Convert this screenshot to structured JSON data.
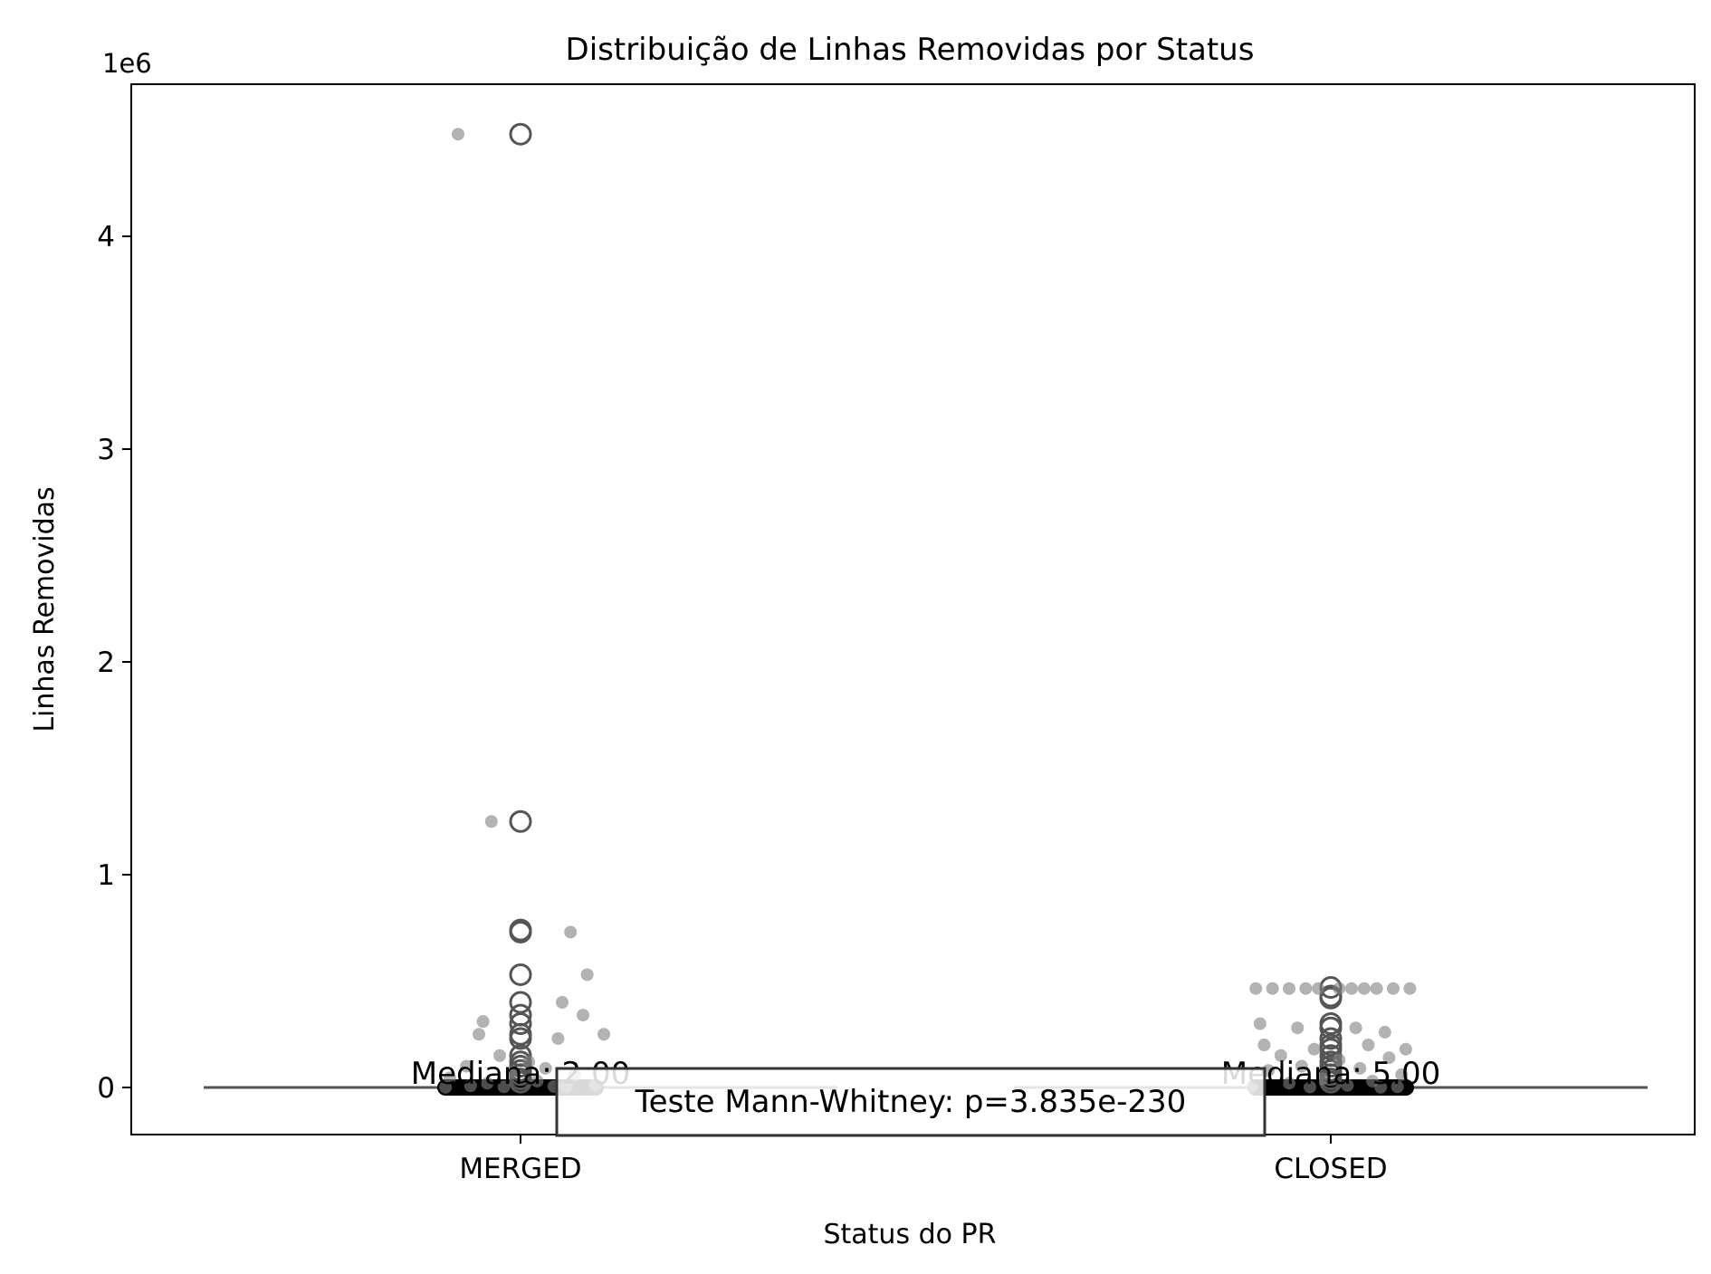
{
  "chart_data": {
    "type": "box",
    "title": "Distribuição de Linhas Removidas por Status",
    "xlabel": "Status do PR",
    "ylabel": "Linhas Removidas",
    "y_scale_label": "1e6",
    "ylim": [
      -220000,
      4850000
    ],
    "yticks": [
      0,
      1000000,
      2000000,
      3000000,
      4000000
    ],
    "ytick_labels": [
      "0",
      "1",
      "2",
      "3",
      "4"
    ],
    "grid": false,
    "categories": [
      "MERGED",
      "CLOSED"
    ],
    "medians": [
      2,
      5
    ],
    "median_labels": [
      "Mediana: 2.00",
      "Mediana: 5.00"
    ],
    "test_annotation": "Teste Mann-Whitney: p=3.835e-230",
    "colors": {
      "box_line": "#555555",
      "outlier_edge": "#555555",
      "jitter": "#808080",
      "frame": "#000000"
    },
    "outliers": [
      [
        4480000,
        1250000,
        740000,
        730000,
        530000,
        400000,
        340000,
        300000,
        250000,
        230000,
        150000,
        120000,
        100000,
        80000,
        60000,
        40000,
        25000
      ],
      [
        470000,
        430000,
        420000,
        300000,
        280000,
        230000,
        200000,
        180000,
        150000,
        120000,
        100000,
        80000,
        60000,
        40000,
        25000
      ]
    ],
    "jitter_points": [
      [
        [
          -0.15,
          4480000
        ],
        [
          -0.07,
          1250000
        ],
        [
          0.12,
          730000
        ],
        [
          0.16,
          530000
        ],
        [
          0.1,
          400000
        ],
        [
          0.15,
          340000
        ],
        [
          -0.09,
          310000
        ],
        [
          0.2,
          250000
        ],
        [
          -0.1,
          250000
        ],
        [
          0.09,
          230000
        ],
        [
          -0.05,
          150000
        ],
        [
          0.02,
          120000
        ],
        [
          -0.13,
          100000
        ],
        [
          0.06,
          90000
        ],
        [
          -0.02,
          70000
        ],
        [
          0.13,
          60000
        ],
        [
          -0.17,
          45000
        ],
        [
          0.04,
          30000
        ],
        [
          -0.08,
          20000
        ],
        [
          0.18,
          12000
        ],
        [
          -0.12,
          8000
        ],
        [
          0.08,
          5000
        ],
        [
          -0.04,
          3000
        ],
        [
          0.11,
          2000
        ],
        [
          -0.18,
          1000
        ]
      ],
      [
        [
          -0.18,
          465000
        ],
        [
          -0.14,
          465000
        ],
        [
          -0.1,
          465000
        ],
        [
          -0.06,
          465000
        ],
        [
          -0.03,
          465000
        ],
        [
          0.02,
          465000
        ],
        [
          0.05,
          465000
        ],
        [
          0.08,
          465000
        ],
        [
          0.11,
          465000
        ],
        [
          0.15,
          465000
        ],
        [
          0.19,
          465000
        ],
        [
          -0.17,
          300000
        ],
        [
          -0.08,
          280000
        ],
        [
          0.06,
          280000
        ],
        [
          0.13,
          260000
        ],
        [
          -0.16,
          200000
        ],
        [
          -0.04,
          180000
        ],
        [
          0.09,
          200000
        ],
        [
          0.18,
          180000
        ],
        [
          -0.12,
          150000
        ],
        [
          0.02,
          130000
        ],
        [
          0.14,
          140000
        ],
        [
          -0.07,
          100000
        ],
        [
          0.07,
          90000
        ],
        [
          -0.15,
          80000
        ],
        [
          0.17,
          60000
        ],
        [
          -0.02,
          40000
        ],
        [
          0.1,
          30000
        ],
        [
          -0.1,
          20000
        ],
        [
          0.04,
          10000
        ],
        [
          -0.19,
          5000
        ],
        [
          0.16,
          3000
        ],
        [
          -0.05,
          2000
        ],
        [
          0.12,
          1000
        ]
      ]
    ]
  }
}
